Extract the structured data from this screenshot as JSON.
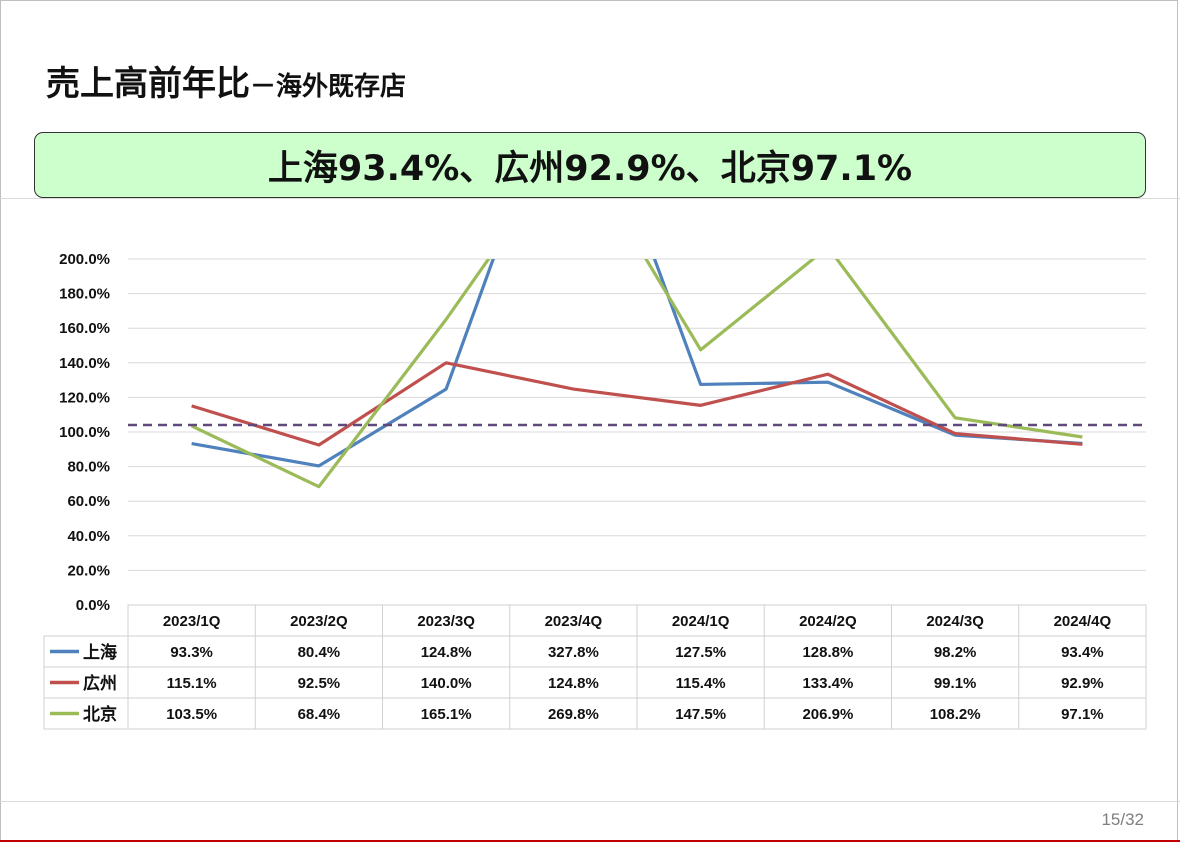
{
  "slide": {
    "title_main": "売上高前年比",
    "title_sub": "－海外既存店",
    "banner": "上海93.4%、広州92.9%、北京97.1%",
    "page_number": "15/32"
  },
  "chart_data": {
    "type": "line",
    "categories": [
      "2023/1Q",
      "2023/2Q",
      "2023/3Q",
      "2023/4Q",
      "2024/1Q",
      "2024/2Q",
      "2024/3Q",
      "2024/4Q"
    ],
    "series": [
      {
        "name": "上海",
        "color": "#4f81bd",
        "values": [
          93.3,
          80.4,
          124.8,
          327.8,
          127.5,
          128.8,
          98.2,
          93.4
        ],
        "labels": [
          "93.3%",
          "80.4%",
          "124.8%",
          "327.8%",
          "127.5%",
          "128.8%",
          "98.2%",
          "93.4%"
        ]
      },
      {
        "name": "広州",
        "color": "#c0504d",
        "values": [
          115.1,
          92.5,
          140.0,
          124.8,
          115.4,
          133.4,
          99.1,
          92.9
        ],
        "labels": [
          "115.1%",
          "92.5%",
          "140.0%",
          "124.8%",
          "115.4%",
          "133.4%",
          "99.1%",
          "92.9%"
        ]
      },
      {
        "name": "北京",
        "color": "#9bbb59",
        "values": [
          103.5,
          68.4,
          165.1,
          269.8,
          147.5,
          206.9,
          108.2,
          97.1
        ],
        "labels": [
          "103.5%",
          "68.4%",
          "165.1%",
          "269.8%",
          "147.5%",
          "206.9%",
          "108.2%",
          "97.1%"
        ]
      }
    ],
    "y_ticks": [
      "0.0%",
      "20.0%",
      "40.0%",
      "60.0%",
      "80.0%",
      "100.0%",
      "120.0%",
      "140.0%",
      "160.0%",
      "180.0%",
      "200.0%"
    ],
    "ylim": [
      0,
      200
    ],
    "reference_line": {
      "value": 100,
      "style": "dashed",
      "color": "#604a7b"
    },
    "grid": true,
    "legend": "data-table",
    "xlabel": "",
    "ylabel": ""
  }
}
